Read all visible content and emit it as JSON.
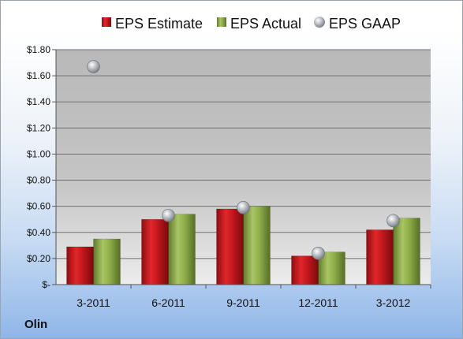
{
  "company": "Olin",
  "colors": {
    "estimate": "#c0181d",
    "actual": "#8fae4a",
    "gaap": "#b8bcc2"
  },
  "chart_data": {
    "type": "bar",
    "categories": [
      "3-2011",
      "6-2011",
      "9-2011",
      "12-2011",
      "3-2012"
    ],
    "series": [
      {
        "name": "EPS Estimate",
        "type": "bar",
        "values": [
          0.29,
          0.5,
          0.58,
          0.22,
          0.42
        ]
      },
      {
        "name": "EPS Actual",
        "type": "bar",
        "values": [
          0.35,
          0.54,
          0.6,
          0.25,
          0.51
        ]
      },
      {
        "name": "EPS GAAP",
        "type": "marker",
        "values": [
          1.67,
          0.53,
          0.59,
          0.24,
          0.49
        ]
      }
    ],
    "ylim": [
      0,
      1.8
    ],
    "yticks": [
      0,
      0.2,
      0.4,
      0.6,
      0.8,
      1.0,
      1.2,
      1.4,
      1.6,
      1.8
    ],
    "ytick_labels": [
      "$-",
      "$0.20",
      "$0.40",
      "$0.60",
      "$0.80",
      "$1.00",
      "$1.20",
      "$1.40",
      "$1.60",
      "$1.80"
    ],
    "legend_position": "top",
    "grid": true
  }
}
